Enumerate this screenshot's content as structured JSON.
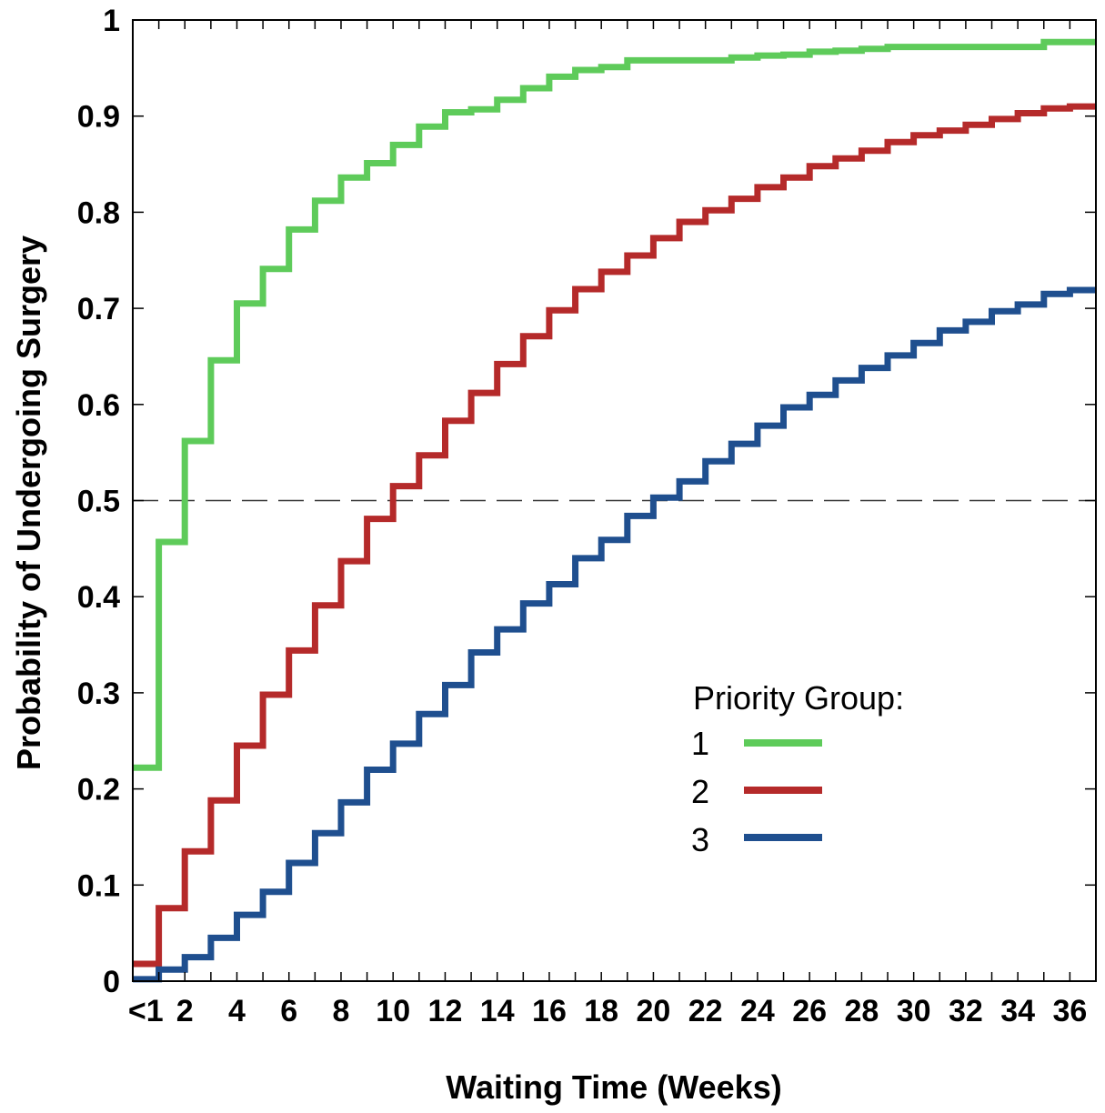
{
  "chart_data": {
    "type": "line",
    "step": true,
    "xlabel": "Waiting  Time  (Weeks)",
    "ylabel": "Probability  of  Undergoing  Surgery",
    "xlim": [
      0,
      37
    ],
    "ylim": [
      0,
      1
    ],
    "x_tick_labels": [
      "<1",
      "2",
      "4",
      "6",
      "8",
      "10",
      "12",
      "14",
      "16",
      "18",
      "20",
      "22",
      "24",
      "26",
      "28",
      "30",
      "32",
      "34",
      "36"
    ],
    "x_tick_positions": [
      0.5,
      2,
      4,
      6,
      8,
      10,
      12,
      14,
      16,
      18,
      20,
      22,
      24,
      26,
      28,
      30,
      32,
      34,
      36
    ],
    "y_ticks": [
      0,
      0.1,
      0.2,
      0.3,
      0.4,
      0.5,
      0.6,
      0.7,
      0.8,
      0.9,
      1
    ],
    "y_tick_labels": [
      "0",
      "0.1",
      "0.2",
      "0.3",
      "0.4",
      "0.5",
      "0.6",
      "0.7",
      "0.8",
      "0.9",
      "1"
    ],
    "reference_line": {
      "y": 0.5,
      "style": "dashed"
    },
    "legend_title": "Priority Group:",
    "legend_position": "lower-right",
    "series": [
      {
        "name": "1",
        "color": "#5ecb5a",
        "values": [
          0.222,
          0.457,
          0.562,
          0.646,
          0.705,
          0.741,
          0.782,
          0.812,
          0.836,
          0.851,
          0.87,
          0.889,
          0.904,
          0.907,
          0.917,
          0.929,
          0.941,
          0.948,
          0.951,
          0.958,
          0.958,
          0.958,
          0.958,
          0.961,
          0.963,
          0.964,
          0.967,
          0.968,
          0.97,
          0.972,
          0.972,
          0.972,
          0.972,
          0.972,
          0.972,
          0.977,
          0.977
        ]
      },
      {
        "name": "2",
        "color": "#b52a2a",
        "values": [
          0.018,
          0.076,
          0.135,
          0.188,
          0.245,
          0.298,
          0.344,
          0.391,
          0.437,
          0.481,
          0.515,
          0.547,
          0.583,
          0.612,
          0.642,
          0.671,
          0.698,
          0.72,
          0.738,
          0.755,
          0.773,
          0.79,
          0.802,
          0.814,
          0.826,
          0.836,
          0.848,
          0.856,
          0.864,
          0.873,
          0.88,
          0.885,
          0.891,
          0.897,
          0.903,
          0.908,
          0.91
        ]
      },
      {
        "name": "3",
        "color": "#1f4f8f",
        "values": [
          0.002,
          0.012,
          0.025,
          0.045,
          0.069,
          0.093,
          0.123,
          0.154,
          0.186,
          0.22,
          0.247,
          0.278,
          0.308,
          0.342,
          0.366,
          0.393,
          0.413,
          0.44,
          0.459,
          0.484,
          0.503,
          0.52,
          0.541,
          0.559,
          0.578,
          0.597,
          0.61,
          0.625,
          0.638,
          0.651,
          0.664,
          0.677,
          0.686,
          0.697,
          0.704,
          0.715,
          0.719
        ]
      }
    ]
  }
}
